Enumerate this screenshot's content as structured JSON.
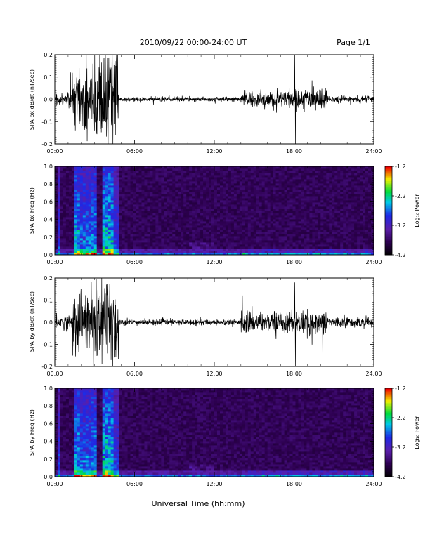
{
  "header": {
    "date_range": "2010/09/22  00:00-24:00 UT",
    "page": "Page 1/1"
  },
  "xlabel": "Universal Time (hh:mm)",
  "chart_data": [
    {
      "type": "line",
      "ylabel": "SPA bx dB/dt (nT/sec)",
      "xlim": [
        0,
        24
      ],
      "ylim": [
        -0.2,
        0.2
      ],
      "y_ticks": [
        "-0.2",
        "-0.1",
        "0.0",
        "0.1",
        "0.2"
      ],
      "x_ticks": [
        "00:00",
        "06:00",
        "12:00",
        "18:00",
        "24:00"
      ],
      "activity": [
        {
          "start": 0.0,
          "end": 1.3,
          "amplitude": 0.03
        },
        {
          "start": 1.3,
          "end": 3.0,
          "amplitude": 0.12
        },
        {
          "start": 3.0,
          "end": 4.8,
          "amplitude": 0.2
        },
        {
          "start": 4.8,
          "end": 14.0,
          "amplitude": 0.01
        },
        {
          "start": 14.0,
          "end": 16.5,
          "amplitude": 0.035
        },
        {
          "start": 16.5,
          "end": 20.5,
          "amplitude": 0.04
        },
        {
          "start": 20.5,
          "end": 24.0,
          "amplitude": 0.015
        }
      ],
      "spikes": [
        {
          "x": 18.05,
          "y": 0.2
        },
        {
          "x": 18.1,
          "y": -0.2
        }
      ]
    },
    {
      "type": "heatmap",
      "ylabel": "SPA bx Freq (Hz)",
      "xlim": [
        0,
        24
      ],
      "ylim": [
        0.0,
        1.0
      ],
      "y_ticks": [
        "0.0",
        "0.2",
        "0.4",
        "0.6",
        "0.8",
        "1.0"
      ],
      "x_ticks": [
        "00:00",
        "06:00",
        "12:00",
        "18:00",
        "24:00"
      ],
      "colorbar": {
        "label": "Log₁₀ Power",
        "ticks": [
          "-1.2",
          "-2.2",
          "-3.2",
          "-4.2"
        ],
        "range": [
          -4.2,
          -1.2
        ]
      }
    },
    {
      "type": "line",
      "ylabel": "SPA by dB/dt (nT/sec)",
      "xlim": [
        0,
        24
      ],
      "ylim": [
        -0.2,
        0.2
      ],
      "y_ticks": [
        "-0.2",
        "-0.1",
        "0.0",
        "0.1",
        "0.2"
      ],
      "x_ticks": [
        "00:00",
        "06:00",
        "12:00",
        "18:00",
        "24:00"
      ],
      "activity": [
        {
          "start": 0.0,
          "end": 1.3,
          "amplitude": 0.03
        },
        {
          "start": 1.3,
          "end": 3.0,
          "amplitude": 0.13
        },
        {
          "start": 3.0,
          "end": 4.8,
          "amplitude": 0.2
        },
        {
          "start": 4.8,
          "end": 14.0,
          "amplitude": 0.012
        },
        {
          "start": 14.0,
          "end": 16.5,
          "amplitude": 0.04
        },
        {
          "start": 16.5,
          "end": 20.5,
          "amplitude": 0.045
        },
        {
          "start": 20.5,
          "end": 24.0,
          "amplitude": 0.02
        }
      ],
      "spikes": [
        {
          "x": 14.1,
          "y": 0.12
        },
        {
          "x": 18.05,
          "y": 0.18
        },
        {
          "x": 18.1,
          "y": -0.2
        }
      ]
    },
    {
      "type": "heatmap",
      "ylabel": "SPA by Freq (Hz)",
      "xlim": [
        0,
        24
      ],
      "ylim": [
        0.0,
        1.0
      ],
      "y_ticks": [
        "0.0",
        "0.2",
        "0.4",
        "0.6",
        "0.8",
        "1.0"
      ],
      "x_ticks": [
        "00:00",
        "06:00",
        "12:00",
        "18:00",
        "24:00"
      ],
      "colorbar": {
        "label": "Log₁₀ Power",
        "ticks": [
          "-1.2",
          "-2.2",
          "-3.2",
          "-4.2"
        ],
        "range": [
          -4.2,
          -1.2
        ]
      }
    }
  ]
}
